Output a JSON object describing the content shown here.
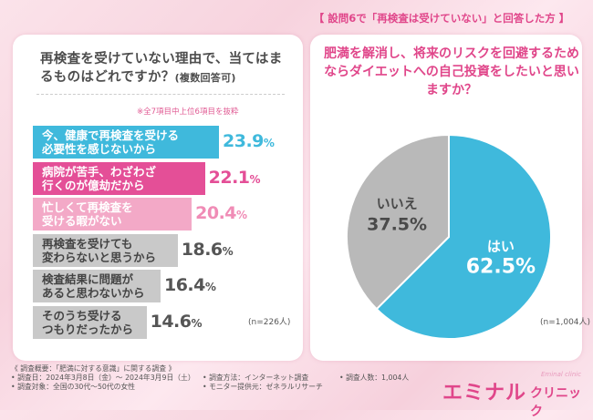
{
  "left_panel": {
    "question": "再検査を受けていない理由で、当てはまるものはどれですか？",
    "question_note": "(複数回答可)",
    "note": "※全7項目中上位6項目を抜粋",
    "n_label": "(n=226人)"
  },
  "right_panel": {
    "header": "【 設問6で「再検査は受けていない」と回答した方 】",
    "question": "肥満を解消し、将来のリスクを回避するためならダイエットへの自己投資をしたいと思いますか？",
    "n_label": "(n=1,004人)"
  },
  "chart_data": [
    {
      "type": "bar",
      "orientation": "horizontal",
      "title": "再検査を受けていない理由で、当てはまるものはどれですか？(複数回答可)",
      "categories": [
        "今、健康で再検査を受ける\n必要性を感じないから",
        "病院が苦手、わざわざ\n行くのが億劫だから",
        "忙しくて再検査を\n受ける暇がない",
        "再検査を受けても\n変わらないと思うから",
        "検査結果に問題が\nあると思わないから",
        "そのうち受ける\nつもりだったから"
      ],
      "values": [
        23.9,
        22.1,
        20.4,
        18.6,
        16.4,
        14.6
      ],
      "unit": "%",
      "colors": [
        "#3fb9dc",
        "#e44f97",
        "#f3a9c7",
        "#c9c9c9",
        "#c9c9c9",
        "#c9c9c9"
      ],
      "text_colors": [
        "#ffffff",
        "#ffffff",
        "#ffffff",
        "#444444",
        "#444444",
        "#444444"
      ],
      "value_colors": [
        "#3fb9dc",
        "#e44f97",
        "#f08cb6",
        "#555555",
        "#555555",
        "#555555"
      ],
      "xlim": [
        0,
        23.9
      ],
      "n": "n=226人"
    },
    {
      "type": "pie",
      "title": "肥満を解消し、将来のリスクを回避するためならダイエットへの自己投資をしたいと思いますか？",
      "labels": [
        "はい",
        "いいえ"
      ],
      "values": [
        62.5,
        37.5
      ],
      "unit": "%",
      "colors": [
        "#3fb9dc",
        "#b9b9b9"
      ],
      "n": "n=1,004人"
    }
  ],
  "survey": {
    "title": "《 調査概要：「肥満に対する意識」に関する調査 》",
    "date": "• 調査日：2024年3月8日（金）～ 2024年3月9日（土）",
    "method": "• 調査方法：インターネット調査",
    "people": "• 調査人数：1,004人",
    "target": "• 調査対象：全国の30代～50代の女性",
    "provider": "• モニター提供元：ゼネラルリサーチ"
  },
  "logo": {
    "main": "エミナル",
    "sub": "クリニック",
    "eng": "Eminal clinic"
  }
}
